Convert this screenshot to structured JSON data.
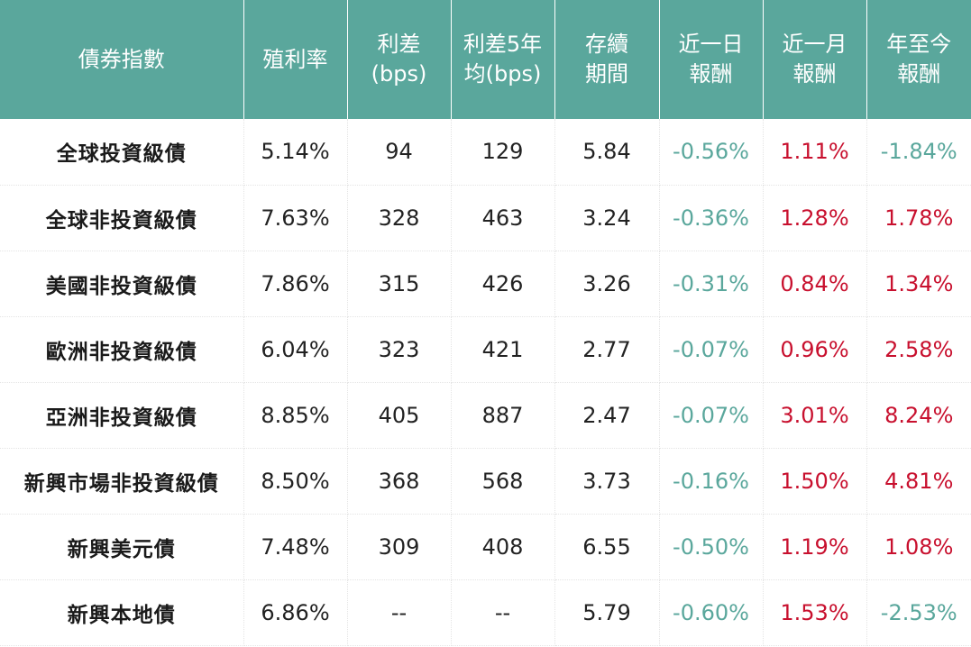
{
  "headers": [
    [
      "債券指數"
    ],
    [
      "殖利率"
    ],
    [
      "利差",
      "(bps)"
    ],
    [
      "利差5年",
      "均(bps)"
    ],
    [
      "存續",
      "期間"
    ],
    [
      "近一日",
      "報酬"
    ],
    [
      "近一月",
      "報酬"
    ],
    [
      "年至今",
      "報酬"
    ]
  ],
  "rows": [
    [
      "全球投資級債",
      "5.14%",
      "94",
      "129",
      "5.84",
      "-0.56%",
      "1.11%",
      "-1.84%"
    ],
    [
      "全球非投資級債",
      "7.63%",
      "328",
      "463",
      "3.24",
      "-0.36%",
      "1.28%",
      "1.78%"
    ],
    [
      "美國非投資級債",
      "7.86%",
      "315",
      "426",
      "3.26",
      "-0.31%",
      "0.84%",
      "1.34%"
    ],
    [
      "歐洲非投資級債",
      "6.04%",
      "323",
      "421",
      "2.77",
      "-0.07%",
      "0.96%",
      "2.58%"
    ],
    [
      "亞洲非投資級債",
      "8.85%",
      "405",
      "887",
      "2.47",
      "-0.07%",
      "3.01%",
      "8.24%"
    ],
    [
      "新興市場非投資級債",
      "8.50%",
      "368",
      "568",
      "3.73",
      "-0.16%",
      "1.50%",
      "4.81%"
    ],
    [
      "新興美元債",
      "7.48%",
      "309",
      "408",
      "6.55",
      "-0.50%",
      "1.19%",
      "1.08%"
    ],
    [
      "新興本地債",
      "6.86%",
      "--",
      "--",
      "5.79",
      "-0.60%",
      "1.53%",
      "-2.53%"
    ]
  ],
  "colors": {
    "header_bg": "#5aa79c",
    "negative": "#5aa79c",
    "positive": "#c8102e"
  }
}
